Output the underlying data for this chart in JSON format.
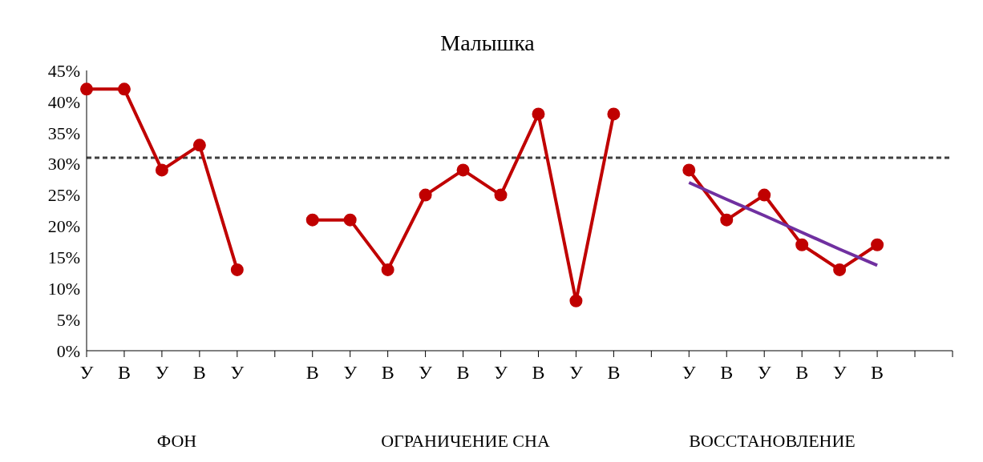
{
  "chart_data": {
    "type": "line",
    "title": "Малышка",
    "categories": [
      "У",
      "В",
      "У",
      "В",
      "У",
      null,
      "В",
      "У",
      "В",
      "У",
      "В",
      "У",
      "В",
      "У",
      "В",
      null,
      "У",
      "В",
      "У",
      "В",
      "У",
      "В",
      null,
      null
    ],
    "series": [
      {
        "color": "#c00000",
        "values": [
          42,
          42,
          29,
          33,
          13,
          null,
          21,
          21,
          13,
          25,
          29,
          25,
          38,
          8,
          38,
          null,
          29,
          21,
          25,
          17,
          13,
          17,
          null,
          null
        ]
      },
      {
        "color": "#7030a0",
        "marker": "none",
        "values": [
          null,
          null,
          null,
          null,
          null,
          null,
          null,
          null,
          null,
          null,
          null,
          null,
          null,
          null,
          null,
          null,
          27,
          24.3,
          21.7,
          19,
          16.3,
          13.7,
          null,
          null
        ]
      }
    ],
    "ylim": [
      0,
      45
    ],
    "yticks": [
      {
        "value": 0,
        "label": "0%"
      },
      {
        "value": 5,
        "label": "5%"
      },
      {
        "value": 10,
        "label": "10%"
      },
      {
        "value": 15,
        "label": "15%"
      },
      {
        "value": 20,
        "label": "20%"
      },
      {
        "value": 25,
        "label": "25%"
      },
      {
        "value": 30,
        "label": "30%"
      },
      {
        "value": 35,
        "label": "35%"
      },
      {
        "value": 40,
        "label": "40%"
      },
      {
        "value": 45,
        "label": "45%"
      }
    ],
    "ref_lines": [
      {
        "axis": "y",
        "value": 31,
        "color": "#404040",
        "line_style": "dashed"
      }
    ],
    "annotations": [
      "ФОН",
      "ОГРАНИЧЕНИЕ СНА",
      "ВОССТАНОВЛЕНИЕ"
    ],
    "marker": "circle",
    "line_style": "solid",
    "grid": false,
    "legend": false
  }
}
